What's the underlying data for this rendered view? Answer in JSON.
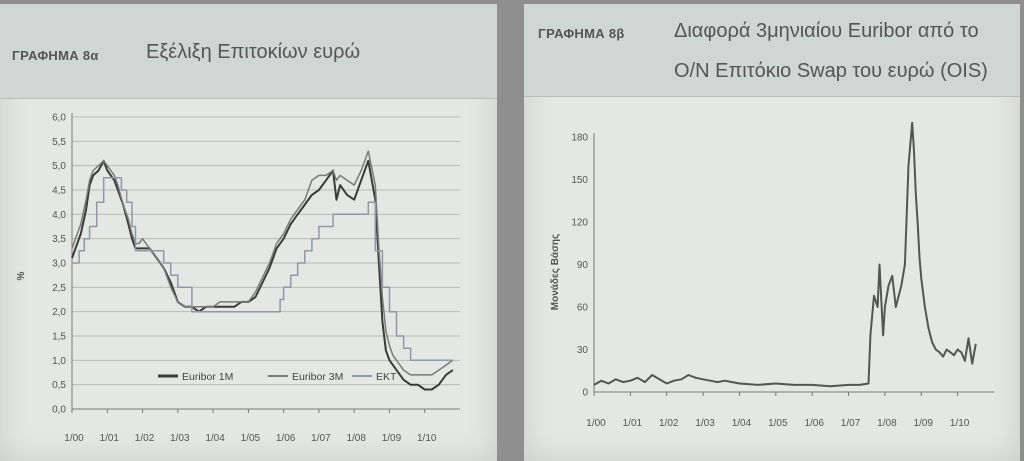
{
  "chart_data": [
    {
      "type": "line",
      "label": "ΓΡΑΦΗΜΑ 8α",
      "title": "Εξέλιξη Επιτοκίων ευρώ",
      "ylabel": "%",
      "ylim": [
        0,
        6
      ],
      "yticks": [
        "0,0",
        "0,5",
        "1,0",
        "1,5",
        "2,0",
        "2,5",
        "3,0",
        "3,5",
        "4,0",
        "4,5",
        "5,0",
        "5,5",
        "6,0"
      ],
      "xticks": [
        "1/00",
        "1/01",
        "1/02",
        "1/03",
        "1/04",
        "1/05",
        "1/06",
        "1/07",
        "1/08",
        "1/09",
        "1/10"
      ],
      "grid": true,
      "legend": "bottom-right",
      "series": [
        {
          "name": "Euribor 1M",
          "color": "#3a3a3a",
          "x": [
            0,
            0.1,
            0.25,
            0.4,
            0.5,
            0.6,
            0.75,
            0.9,
            1.0,
            1.1,
            1.2,
            1.3,
            1.45,
            1.6,
            1.7,
            1.8,
            1.9,
            2.0,
            2.2,
            2.4,
            2.6,
            2.8,
            3.0,
            3.2,
            3.4,
            3.6,
            3.8,
            4.0,
            4.2,
            4.4,
            4.6,
            4.8,
            5.0,
            5.2,
            5.4,
            5.6,
            5.8,
            6.0,
            6.2,
            6.4,
            6.6,
            6.8,
            7.0,
            7.2,
            7.4,
            7.5,
            7.6,
            7.8,
            8.0,
            8.2,
            8.4,
            8.6,
            8.7,
            8.8,
            8.9,
            9.0,
            9.1,
            9.2,
            9.4,
            9.6,
            9.8,
            10.0,
            10.2,
            10.4,
            10.6,
            10.8
          ],
          "y": [
            3.1,
            3.3,
            3.6,
            4.1,
            4.6,
            4.8,
            4.9,
            5.1,
            4.9,
            4.8,
            4.7,
            4.5,
            4.2,
            3.8,
            3.5,
            3.3,
            3.3,
            3.3,
            3.3,
            3.1,
            2.9,
            2.6,
            2.2,
            2.1,
            2.1,
            2.0,
            2.1,
            2.1,
            2.1,
            2.1,
            2.1,
            2.2,
            2.2,
            2.3,
            2.6,
            2.9,
            3.3,
            3.5,
            3.8,
            4.0,
            4.2,
            4.4,
            4.5,
            4.7,
            4.9,
            4.3,
            4.6,
            4.4,
            4.3,
            4.7,
            5.1,
            4.3,
            3.0,
            1.8,
            1.2,
            1.0,
            0.9,
            0.8,
            0.6,
            0.5,
            0.5,
            0.4,
            0.4,
            0.5,
            0.7,
            0.8
          ]
        },
        {
          "name": "Euribor 3M",
          "color": "#7a7a7a",
          "x": [
            0,
            0.1,
            0.25,
            0.4,
            0.5,
            0.6,
            0.75,
            0.9,
            1.0,
            1.1,
            1.2,
            1.3,
            1.45,
            1.6,
            1.7,
            1.8,
            1.9,
            2.0,
            2.2,
            2.4,
            2.6,
            2.8,
            3.0,
            3.2,
            3.4,
            3.6,
            3.8,
            4.0,
            4.2,
            4.4,
            4.6,
            4.8,
            5.0,
            5.2,
            5.4,
            5.6,
            5.8,
            6.0,
            6.2,
            6.4,
            6.6,
            6.8,
            7.0,
            7.2,
            7.4,
            7.5,
            7.6,
            7.8,
            8.0,
            8.2,
            8.4,
            8.6,
            8.7,
            8.8,
            8.9,
            9.0,
            9.1,
            9.2,
            9.4,
            9.6,
            9.8,
            10.0,
            10.2,
            10.4,
            10.6,
            10.8
          ],
          "y": [
            3.3,
            3.5,
            3.8,
            4.3,
            4.7,
            4.9,
            5.0,
            5.1,
            5.0,
            4.9,
            4.8,
            4.6,
            4.2,
            3.9,
            3.6,
            3.4,
            3.4,
            3.5,
            3.3,
            3.1,
            2.9,
            2.5,
            2.2,
            2.1,
            2.1,
            2.1,
            2.1,
            2.1,
            2.2,
            2.2,
            2.2,
            2.2,
            2.2,
            2.4,
            2.7,
            3.0,
            3.4,
            3.6,
            3.9,
            4.1,
            4.3,
            4.7,
            4.8,
            4.8,
            4.9,
            4.7,
            4.8,
            4.7,
            4.6,
            4.9,
            5.3,
            4.6,
            3.3,
            2.3,
            1.6,
            1.3,
            1.1,
            1.0,
            0.8,
            0.7,
            0.7,
            0.7,
            0.7,
            0.8,
            0.9,
            1.0
          ]
        },
        {
          "name": "EKT",
          "color": "#8f98a8",
          "x": [
            0,
            0.2,
            0.35,
            0.5,
            0.7,
            0.9,
            1.3,
            1.4,
            1.55,
            1.7,
            1.8,
            2.0,
            2.4,
            2.6,
            2.8,
            3.0,
            3.4,
            3.5,
            4.0,
            5.0,
            5.5,
            5.9,
            6.0,
            6.2,
            6.4,
            6.6,
            6.8,
            7.0,
            7.2,
            7.4,
            7.6,
            8.0,
            8.4,
            8.6,
            8.8,
            9.0,
            9.2,
            9.4,
            9.6,
            10.0,
            10.4,
            10.8
          ],
          "y": [
            3.0,
            3.25,
            3.5,
            3.75,
            4.25,
            4.75,
            4.75,
            4.5,
            4.25,
            3.75,
            3.25,
            3.25,
            3.25,
            3.0,
            2.75,
            2.5,
            2.0,
            2.0,
            2.0,
            2.0,
            2.0,
            2.25,
            2.5,
            2.75,
            3.0,
            3.25,
            3.5,
            3.75,
            3.75,
            4.0,
            4.0,
            4.0,
            4.25,
            3.25,
            2.5,
            2.0,
            1.5,
            1.25,
            1.0,
            1.0,
            1.0,
            1.0
          ]
        }
      ]
    },
    {
      "type": "line",
      "label": "ΓΡΑΦΗΜΑ 8β",
      "title_line1": "Διαφορά 3μηνιαίου Euribor από το",
      "title_line2": "O/N Επιτόκιο Swap του ευρώ (OIS)",
      "ylabel": "Μονάδες Βάσης",
      "ylim": [
        0,
        180
      ],
      "yticks": [
        "0",
        "30",
        "60",
        "90",
        "120",
        "150",
        "180"
      ],
      "xticks": [
        "1/00",
        "1/01",
        "1/02",
        "1/03",
        "1/04",
        "1/05",
        "1/06",
        "1/07",
        "1/08",
        "1/09",
        "1/10"
      ],
      "grid": false,
      "series": [
        {
          "name": "",
          "color": "#555555",
          "x": [
            0,
            0.2,
            0.4,
            0.6,
            0.8,
            1.0,
            1.2,
            1.4,
            1.6,
            1.8,
            2.0,
            2.2,
            2.4,
            2.6,
            2.8,
            3.0,
            3.2,
            3.4,
            3.6,
            3.8,
            4.0,
            4.5,
            5.0,
            5.5,
            6.0,
            6.5,
            7.0,
            7.3,
            7.55,
            7.6,
            7.7,
            7.8,
            7.85,
            7.95,
            8.0,
            8.1,
            8.2,
            8.3,
            8.45,
            8.55,
            8.65,
            8.75,
            8.8,
            8.85,
            8.9,
            8.95,
            9.0,
            9.1,
            9.2,
            9.3,
            9.4,
            9.5,
            9.6,
            9.7,
            9.8,
            9.9,
            10.0,
            10.1,
            10.2,
            10.3,
            10.4,
            10.5
          ],
          "y": [
            5,
            8,
            6,
            9,
            7,
            8,
            10,
            7,
            12,
            9,
            6,
            8,
            9,
            12,
            10,
            9,
            8,
            7,
            8,
            7,
            6,
            5,
            6,
            5,
            5,
            4,
            5,
            5,
            6,
            40,
            68,
            60,
            90,
            40,
            60,
            75,
            82,
            60,
            75,
            90,
            160,
            190,
            170,
            140,
            120,
            95,
            80,
            60,
            45,
            35,
            30,
            28,
            25,
            30,
            28,
            26,
            30,
            28,
            22,
            38,
            20,
            34
          ]
        }
      ]
    }
  ],
  "axis_unit_symbol": "%"
}
